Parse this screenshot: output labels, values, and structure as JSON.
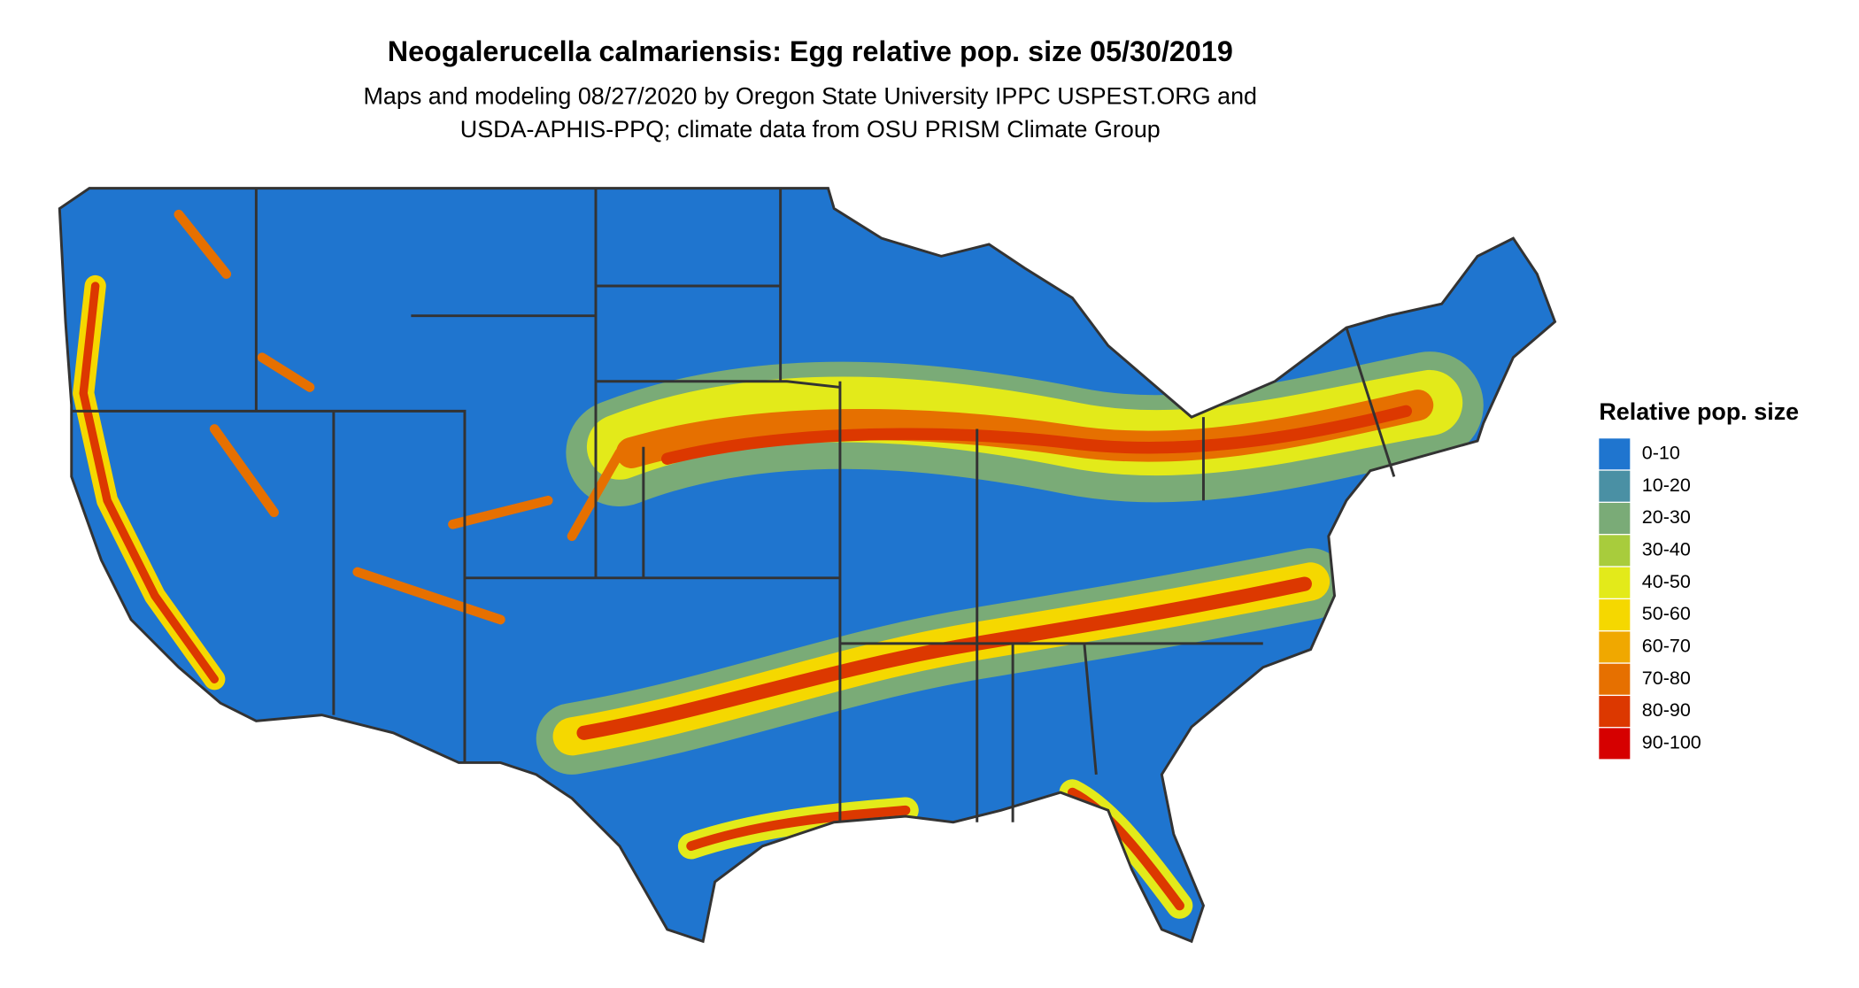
{
  "title": "Neogalerucella calmariensis: Egg relative pop. size 05/30/2019",
  "subtitle": [
    "Maps and modeling 08/27/2020 by Oregon State University IPPC USPEST.ORG and",
    "USDA-APHIS-PPQ; climate data from OSU PRISM Climate Group"
  ],
  "legend": {
    "title": "Relative pop. size",
    "items": [
      {
        "label": "0-10",
        "color": "#1f75cf"
      },
      {
        "label": "10-20",
        "color": "#4a90a4"
      },
      {
        "label": "20-30",
        "color": "#7aab77"
      },
      {
        "label": "30-40",
        "color": "#a8cc3c"
      },
      {
        "label": "40-50",
        "color": "#e3ea1a"
      },
      {
        "label": "50-60",
        "color": "#f5d800"
      },
      {
        "label": "60-70",
        "color": "#f0a800"
      },
      {
        "label": "70-80",
        "color": "#e67000"
      },
      {
        "label": "80-90",
        "color": "#dc3800"
      },
      {
        "label": "90-100",
        "color": "#d60000"
      }
    ]
  }
}
